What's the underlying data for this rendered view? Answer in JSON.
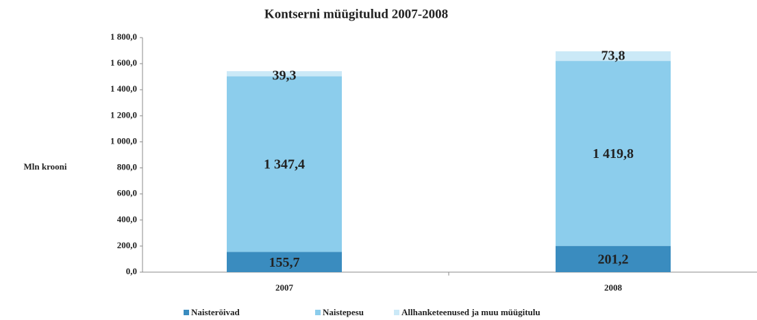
{
  "chart_data": {
    "type": "stacked_bar",
    "title": "Kontserni müügitulud 2007-2008",
    "ylabel": "Mln krooni",
    "categories": [
      "2007",
      "2008"
    ],
    "series": [
      {
        "name": "Naisteröivad",
        "color": "#3a8cbf",
        "values": [
          155.7,
          201.2
        ],
        "value_labels": [
          "155,7",
          "201,2"
        ]
      },
      {
        "name": "Naistepesu",
        "color": "#8ccdec",
        "values": [
          1347.4,
          1419.8
        ],
        "value_labels": [
          "1 347,4",
          "1 419,8"
        ]
      },
      {
        "name": "Allhanketeenused ja muu müügitulu",
        "color": "#cbe9f7",
        "values": [
          39.3,
          73.8
        ],
        "value_labels": [
          "39,3",
          "73,8"
        ]
      }
    ],
    "ylim": [
      0,
      1800
    ],
    "yticks": [
      {
        "value": 0,
        "label": "0,0"
      },
      {
        "value": 200,
        "label": "200,0"
      },
      {
        "value": 400,
        "label": "400,0"
      },
      {
        "value": 600,
        "label": "600,0"
      },
      {
        "value": 800,
        "label": "800,0"
      },
      {
        "value": 1000,
        "label": "1 000,0"
      },
      {
        "value": 1200,
        "label": "1 200,0"
      },
      {
        "value": 1400,
        "label": "1 400,0"
      },
      {
        "value": 1600,
        "label": "1 600,0"
      },
      {
        "value": 1800,
        "label": "1 800,0"
      }
    ],
    "legend": "bottom"
  }
}
